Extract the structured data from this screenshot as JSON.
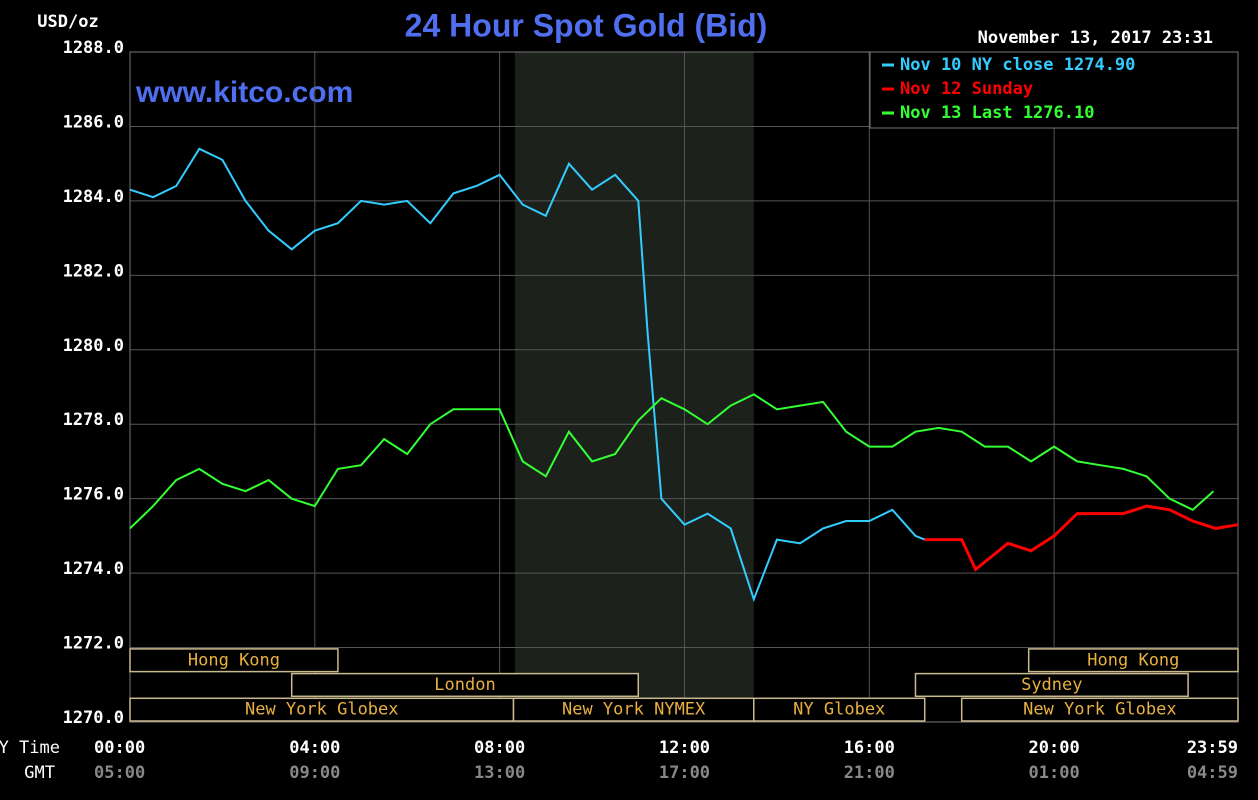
{
  "chart_data": {
    "type": "line",
    "title": "24 Hour Spot Gold (Bid)",
    "unit_label": "USD/oz",
    "watermark": "www.kitco.com",
    "timestamp": "November 13, 2017 23:31",
    "x_axis_names": [
      "NY Time",
      "GMT"
    ],
    "xlim": [
      0,
      23.98
    ],
    "xticks": [
      {
        "value": 0,
        "label": "00:00"
      },
      {
        "value": 4,
        "label": "04:00"
      },
      {
        "value": 8,
        "label": "08:00"
      },
      {
        "value": 12,
        "label": "12:00"
      },
      {
        "value": 16,
        "label": "16:00"
      },
      {
        "value": 20,
        "label": "20:00"
      },
      {
        "value": 23.98,
        "label": "23:59"
      }
    ],
    "gmt_labels": [
      "05:00",
      "09:00",
      "13:00",
      "17:00",
      "21:00",
      "01:00",
      "04:59"
    ],
    "ylim": [
      1270,
      1288
    ],
    "yticks": [
      {
        "value": 1270,
        "label": "1270.0"
      },
      {
        "value": 1272,
        "label": "1272.0"
      },
      {
        "value": 1274,
        "label": "1274.0"
      },
      {
        "value": 1276,
        "label": "1276.0"
      },
      {
        "value": 1278,
        "label": "1278.0"
      },
      {
        "value": 1280,
        "label": "1280.0"
      },
      {
        "value": 1282,
        "label": "1282.0"
      },
      {
        "value": 1284,
        "label": "1284.0"
      },
      {
        "value": 1286,
        "label": "1286.0"
      },
      {
        "value": 1288,
        "label": "1288.0"
      }
    ],
    "grid": true,
    "highlight_range": [
      8.33,
      13.5
    ],
    "sessions": [
      [
        {
          "label": "Hong Kong",
          "start": 0,
          "end": 4.5
        },
        {
          "label": "Hong Kong",
          "start": 19.45,
          "end": 23.98
        }
      ],
      [
        {
          "label": "London",
          "start": 3.5,
          "end": 11
        },
        {
          "label": "Sydney",
          "start": 17,
          "end": 22.9
        }
      ],
      [
        {
          "label": "New York Globex",
          "start": 0,
          "end": 8.3
        },
        {
          "label": "New York NYMEX",
          "start": 8.3,
          "end": 13.5
        },
        {
          "label": "NY Globex",
          "start": 13.5,
          "end": 17.2
        },
        {
          "label": "New York Globex",
          "start": 18,
          "end": 23.98
        }
      ]
    ],
    "series": [
      {
        "name": "Nov 10 NY close 1274.90",
        "color": "#33ccff",
        "x": [
          0,
          0.5,
          1,
          1.5,
          2,
          2.5,
          3,
          3.5,
          4,
          4.5,
          5,
          5.5,
          6,
          6.5,
          7,
          7.5,
          8,
          8.5,
          9,
          9.5,
          10,
          10.5,
          11,
          11.2,
          11.5,
          12,
          12.5,
          13,
          13.5,
          14,
          14.5,
          15,
          15.5,
          16,
          16.5,
          17,
          17.2
        ],
        "values": [
          1284.3,
          1284.1,
          1284.4,
          1285.4,
          1285.1,
          1284.0,
          1283.2,
          1282.7,
          1283.2,
          1283.4,
          1284.0,
          1283.9,
          1284.0,
          1283.4,
          1284.2,
          1284.4,
          1284.7,
          1283.9,
          1283.6,
          1285.0,
          1284.3,
          1284.7,
          1284.0,
          1280.5,
          1276.0,
          1275.3,
          1275.6,
          1275.2,
          1273.3,
          1274.9,
          1274.8,
          1275.2,
          1275.4,
          1275.4,
          1275.7,
          1275.0,
          1274.9
        ]
      },
      {
        "name": "Nov 12 Sunday",
        "color": "#ff0000",
        "x": [
          17.2,
          18,
          18.3,
          19,
          19.5,
          20,
          20.5,
          21,
          21.5,
          22,
          22.5,
          23,
          23.5,
          23.98
        ],
        "values": [
          1274.9,
          1274.9,
          1274.1,
          1274.8,
          1274.6,
          1275.0,
          1275.6,
          1275.6,
          1275.6,
          1275.8,
          1275.7,
          1275.4,
          1275.2,
          1275.3
        ]
      },
      {
        "name": "Nov 13 Last 1276.10",
        "color": "#33ff33",
        "x": [
          0,
          0.5,
          1,
          1.5,
          2,
          2.5,
          3,
          3.5,
          4,
          4.5,
          5,
          5.5,
          6,
          6.5,
          7,
          7.5,
          8,
          8.5,
          9,
          9.5,
          10,
          10.5,
          11,
          11.5,
          12,
          12.5,
          13,
          13.5,
          14,
          14.5,
          15,
          15.5,
          16,
          16.5,
          17,
          17.5,
          18,
          18.5,
          19,
          19.5,
          20,
          20.5,
          21,
          21.5,
          22,
          22.5,
          23,
          23.45
        ],
        "values": [
          1275.2,
          1275.8,
          1276.5,
          1276.8,
          1276.4,
          1276.2,
          1276.5,
          1276.0,
          1275.8,
          1276.8,
          1276.9,
          1277.6,
          1277.2,
          1278.0,
          1278.4,
          1278.4,
          1278.4,
          1277.0,
          1276.6,
          1277.8,
          1277.0,
          1277.2,
          1278.1,
          1278.7,
          1278.4,
          1278.0,
          1278.5,
          1278.8,
          1278.4,
          1278.5,
          1278.6,
          1277.8,
          1277.4,
          1277.4,
          1277.8,
          1277.9,
          1277.8,
          1277.4,
          1277.4,
          1277.0,
          1277.4,
          1277.0,
          1276.9,
          1276.8,
          1276.6,
          1276.0,
          1275.7,
          1276.2
        ]
      }
    ]
  }
}
